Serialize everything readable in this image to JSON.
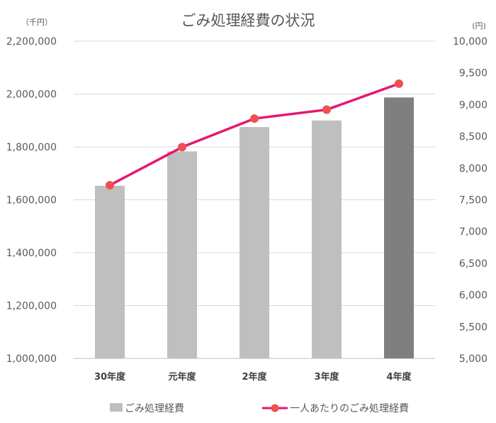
{
  "chart_data": {
    "type": "bar",
    "title": "ごみ処理経費の状況",
    "y_left_unit": "（千円）",
    "y_right_unit": "(円)",
    "categories": [
      "30年度",
      "元年度",
      "2年度",
      "3年度",
      "4年度"
    ],
    "series": [
      {
        "name": "ごみ処理経費",
        "type": "bar",
        "axis": "left",
        "values": [
          1653000,
          1783000,
          1875000,
          1900000,
          1987000
        ],
        "colors": [
          "#bfbfbf",
          "#bfbfbf",
          "#bfbfbf",
          "#bfbfbf",
          "#7f7f7f"
        ]
      },
      {
        "name": "一人あたりのごみ処理経費",
        "type": "line",
        "axis": "right",
        "values": [
          7730,
          8330,
          8780,
          8920,
          9330
        ],
        "color": "#e6176f",
        "marker_color": "#f05050"
      }
    ],
    "y_left": {
      "min": 1000000,
      "max": 2200000,
      "step": 200000,
      "ticks": [
        "1,000,000",
        "1,200,000",
        "1,400,000",
        "1,600,000",
        "1,800,000",
        "2,000,000",
        "2,200,000"
      ]
    },
    "y_right": {
      "min": 5000,
      "max": 10000,
      "step": 500,
      "ticks": [
        "5,000",
        "5,500",
        "6,000",
        "6,500",
        "7,000",
        "7,500",
        "8,000",
        "8,500",
        "9,000",
        "9,500",
        "10,000"
      ]
    },
    "grid": true,
    "legend": "bottom"
  }
}
